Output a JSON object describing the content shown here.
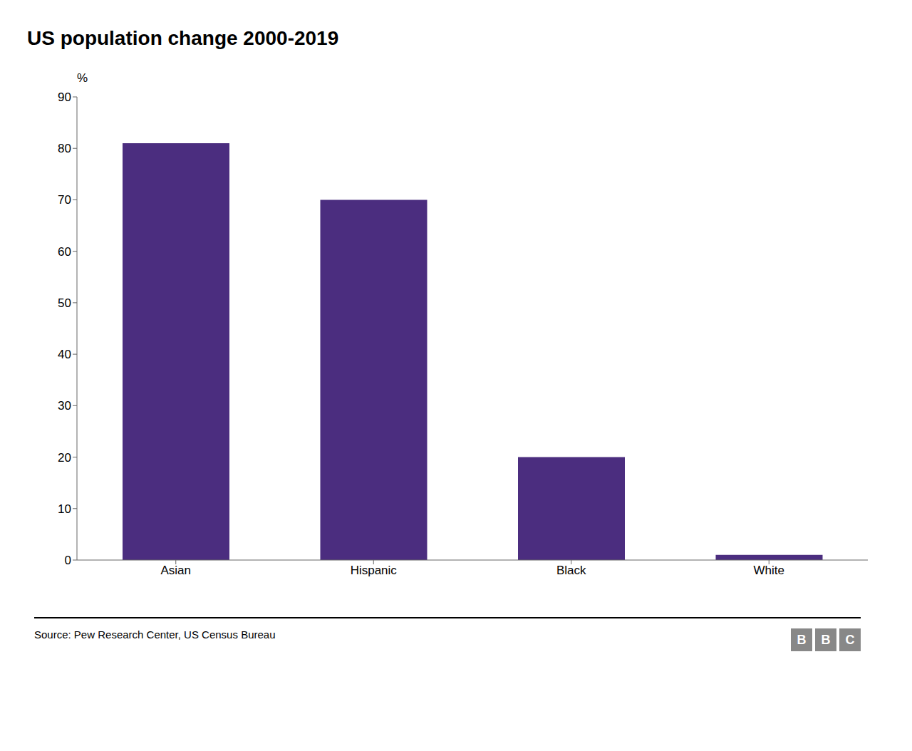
{
  "chart_data": {
    "type": "bar",
    "title": "US population change 2000-2019",
    "categories": [
      "Asian",
      "Hispanic",
      "Black",
      "White"
    ],
    "values": [
      81,
      70,
      20,
      1
    ],
    "color": "#4B2D7F",
    "ylabel": "%",
    "ylim": [
      0,
      90
    ],
    "yticks": [
      0,
      10,
      20,
      30,
      40,
      50,
      60,
      70,
      80,
      90
    ],
    "grid": false,
    "source": "Source: Pew Research Center, US Census Bureau",
    "logo": "BBC"
  }
}
